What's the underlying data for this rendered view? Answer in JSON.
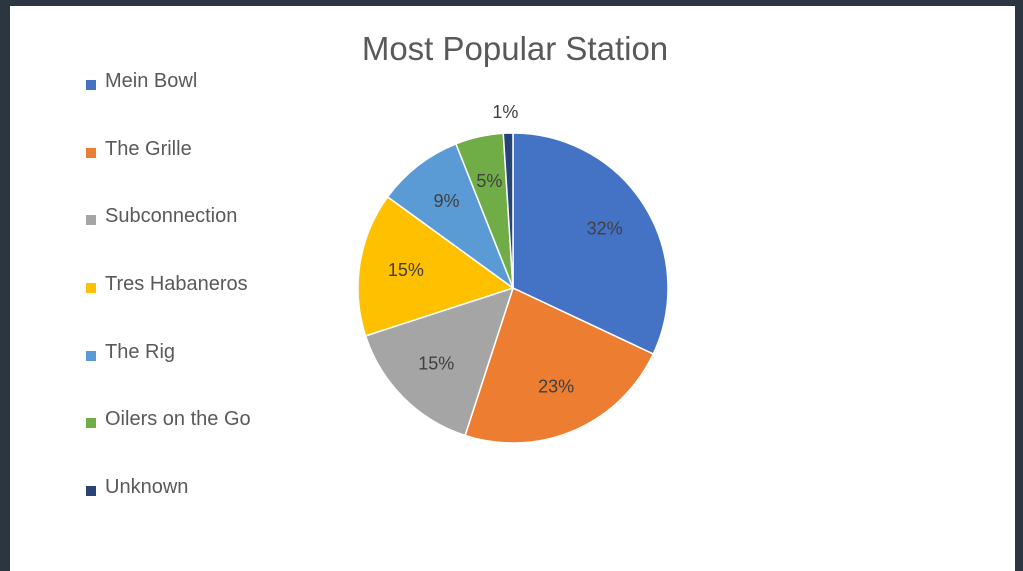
{
  "chart_data": {
    "type": "pie",
    "title": "Most Popular Station",
    "categories": [
      "Mein Bowl",
      "The Grille",
      "Subconnection",
      "Tres Habaneros",
      "The Rig",
      "Oilers on the Go",
      "Unknown"
    ],
    "values": [
      32,
      23,
      15,
      15,
      9,
      5,
      1
    ],
    "labels": [
      "32%",
      "23%",
      "15%",
      "15%",
      "9%",
      "5%",
      "1%"
    ],
    "colors": [
      "#4472c4",
      "#ed7d31",
      "#a5a5a5",
      "#ffc000",
      "#5b9bd5",
      "#70ad47",
      "#264478"
    ],
    "legend_position": "left"
  }
}
